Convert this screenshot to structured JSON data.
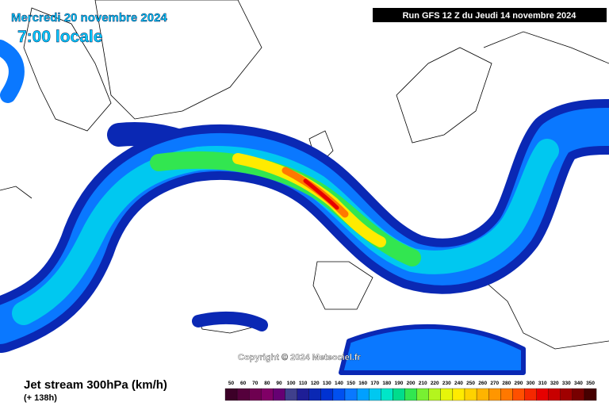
{
  "header": {
    "date": "Mercredi 20 novembre 2024",
    "time": "7:00 locale",
    "run": "Run GFS 12 Z du Jeudi 14 novembre 2024"
  },
  "copyright": "Copyright © 2024 Meteociel.fr",
  "footer": {
    "title": "Jet stream 300hPa (km/h)",
    "lead": "(+ 138h)"
  },
  "legend": {
    "labels": [
      50,
      60,
      70,
      80,
      90,
      100,
      110,
      120,
      130,
      140,
      150,
      160,
      170,
      180,
      190,
      200,
      210,
      220,
      230,
      240,
      250,
      260,
      270,
      280,
      290,
      300,
      310,
      320,
      330,
      340,
      350
    ],
    "colors": [
      "#3c0028",
      "#55003c",
      "#6e0050",
      "#800066",
      "#660073",
      "#40408c",
      "#1e1e96",
      "#0a28b4",
      "#0032d2",
      "#0050f0",
      "#0a78ff",
      "#00a0ff",
      "#00c8f0",
      "#00e6c8",
      "#00dc8c",
      "#32e650",
      "#78f032",
      "#b4f51e",
      "#e6f50a",
      "#ffeb00",
      "#ffd200",
      "#ffb400",
      "#ff9600",
      "#ff7800",
      "#ff5000",
      "#f52800",
      "#e60000",
      "#c80000",
      "#a00000",
      "#780000",
      "#460000"
    ]
  }
}
